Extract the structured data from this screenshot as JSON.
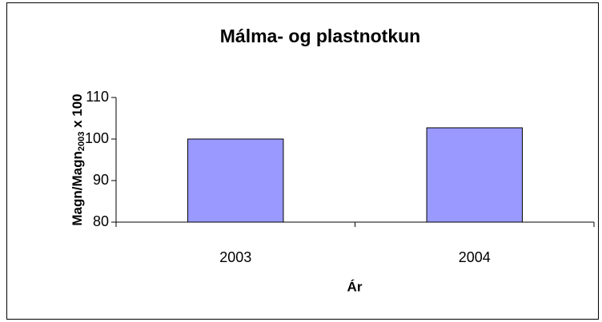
{
  "chart_data": {
    "type": "bar",
    "title": "Málma- og plastnotkun",
    "categories": [
      "2003",
      "2004"
    ],
    "values": [
      100,
      102.7
    ],
    "color": "#9999ff",
    "ylim": [
      80,
      110
    ],
    "yticks": [
      80,
      90,
      100,
      110
    ],
    "grid": false,
    "xlabel": "Ár",
    "ylabel": {
      "text": "Magn/Magn",
      "sub": "2003",
      "rest": " x 100"
    }
  }
}
